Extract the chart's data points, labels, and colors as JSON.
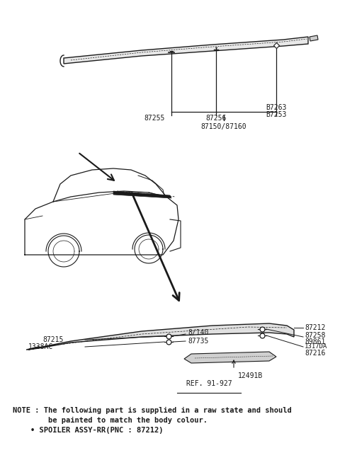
{
  "bg_color": "#ffffff",
  "note_line1": "NOTE : The following part is supplied in a raw state and should",
  "note_line2": "be painted to match the body colour.",
  "note_line3": "• SPOILER ASSY-RR(PNC : 87212)",
  "ref_text": "REF. 91-927",
  "line_color": "#1a1a1a",
  "text_color": "#1a1a1a",
  "font_size_label": 7.0,
  "font_size_note": 7.5
}
